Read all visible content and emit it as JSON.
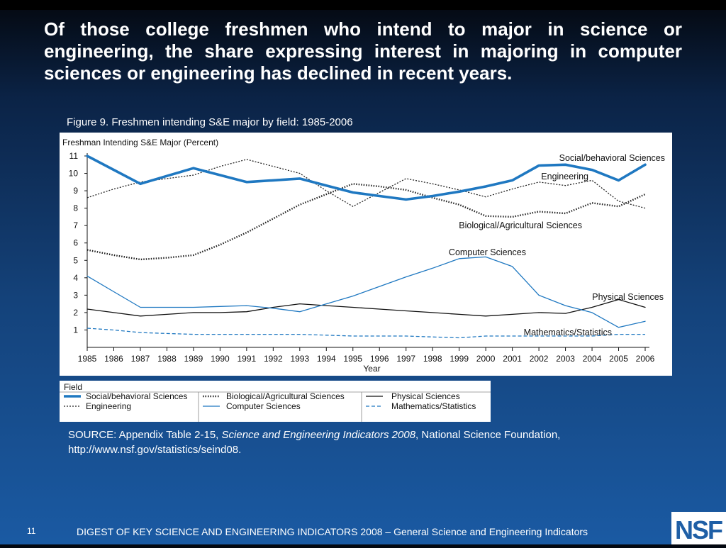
{
  "headline": "Of those college freshmen who intend to major in science or engineering, the share expressing interest in majoring in computer sciences or engineering has declined in recent years.",
  "caption": "Figure 9. Freshmen intending S&E major by field: 1985-2006",
  "source": {
    "prefix": "SOURCE: Appendix Table 2-15, ",
    "italic": "Science and Engineering Indicators 2008",
    "suffix": ", National Science Foundation, http://www.nsf.gov/statistics/seind08."
  },
  "footer": {
    "page_number": "11",
    "text": "DIGEST OF KEY SCIENCE AND ENGINEERING INDICATORS 2008 – General Science and Engineering Indicators"
  },
  "logo": {
    "icon": "nsf-logo-icon",
    "text": "NSF"
  },
  "legend": {
    "title": "Field",
    "items": [
      "Social/behavioral Sciences",
      "Engineering",
      "Biological/Agricultural Sciences",
      "Computer Sciences",
      "Physical Sciences",
      "Mathematics/Statistics"
    ]
  },
  "colors": {
    "dark_line": "#111111",
    "blue_line": "#1f78c1",
    "dotted_line": "#222222"
  },
  "chart_data": {
    "type": "line",
    "ylabel": "Freshman Intending S&E Major (Percent)",
    "xlabel": "Year",
    "x": [
      1985,
      1986,
      1987,
      1988,
      1989,
      1990,
      1991,
      1992,
      1993,
      1994,
      1995,
      1996,
      1997,
      1998,
      1999,
      2000,
      2001,
      2002,
      2003,
      2004,
      2005,
      2006
    ],
    "ylim": [
      0,
      11
    ],
    "yticks": [
      1,
      2,
      3,
      4,
      5,
      6,
      7,
      8,
      9,
      10,
      11
    ],
    "grid": false,
    "series": [
      {
        "name": "Social/behavioral Sciences",
        "style": "thick-blue",
        "values": [
          11.0,
          10.2,
          9.4,
          9.85,
          10.3,
          9.9,
          9.5,
          9.6,
          9.7,
          9.3,
          8.9,
          8.7,
          8.5,
          8.7,
          8.95,
          9.25,
          9.6,
          10.45,
          10.5,
          10.2,
          9.6,
          10.5
        ]
      },
      {
        "name": "Engineering",
        "style": "dotted-thin",
        "values": [
          8.6,
          9.1,
          9.5,
          9.7,
          9.9,
          10.4,
          10.8,
          10.4,
          10.0,
          9.0,
          8.1,
          8.9,
          9.7,
          9.4,
          9.05,
          8.65,
          9.1,
          9.5,
          9.3,
          9.6,
          8.4,
          8.0
        ]
      },
      {
        "name": "Biological/Agricultural Sciences",
        "style": "dotted-thick",
        "values": [
          5.6,
          5.3,
          5.05,
          5.15,
          5.3,
          5.9,
          6.6,
          7.4,
          8.2,
          8.8,
          9.4,
          9.25,
          9.05,
          8.6,
          8.2,
          7.55,
          7.5,
          7.8,
          7.7,
          8.3,
          8.1,
          8.8
        ]
      },
      {
        "name": "Computer Sciences",
        "style": "thin-blue",
        "values": [
          4.1,
          3.2,
          2.3,
          2.3,
          2.3,
          2.35,
          2.4,
          2.25,
          2.05,
          2.5,
          2.95,
          3.5,
          4.05,
          4.55,
          5.1,
          5.2,
          4.65,
          3.0,
          2.4,
          2.0,
          1.15,
          1.5
        ]
      },
      {
        "name": "Physical Sciences",
        "style": "thin-dark",
        "values": [
          2.2,
          2.0,
          1.8,
          1.9,
          2.0,
          2.0,
          2.05,
          2.3,
          2.5,
          2.4,
          2.3,
          2.2,
          2.1,
          2.0,
          1.9,
          1.8,
          1.9,
          2.0,
          1.95,
          2.3,
          2.75,
          2.3
        ]
      },
      {
        "name": "Mathematics/Statistics",
        "style": "dashed-blue",
        "values": [
          1.1,
          1.0,
          0.85,
          0.8,
          0.75,
          0.75,
          0.75,
          0.75,
          0.75,
          0.7,
          0.65,
          0.65,
          0.65,
          0.6,
          0.55,
          0.65,
          0.65,
          0.65,
          0.65,
          0.65,
          0.75,
          0.75
        ]
      }
    ],
    "annotations": [
      "Social/behavioral Sciences",
      "Engineering",
      "Biological/Agricultural Sciences",
      "Computer Sciences",
      "Physical Sciences",
      "Mathematics/Statistics"
    ]
  }
}
